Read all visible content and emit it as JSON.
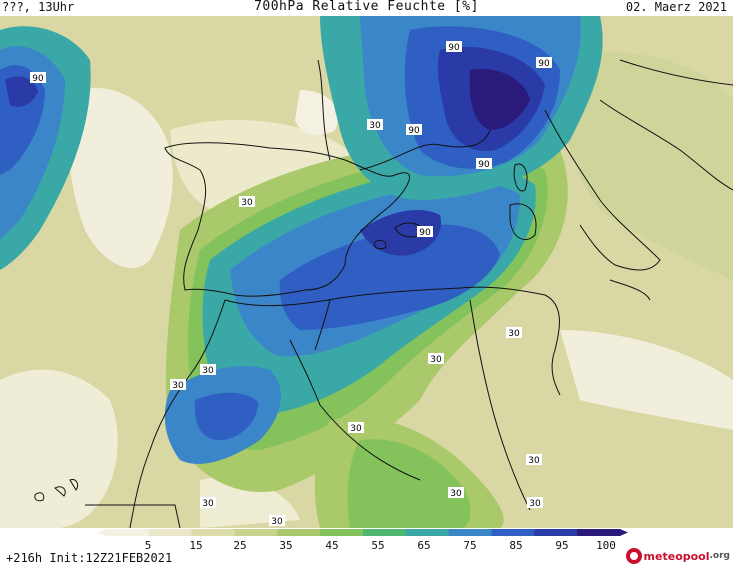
{
  "header": {
    "left_label": "???, 13Uhr",
    "title": "700hPa Relative Feuchte [%]",
    "date": "02. Maerz 2021"
  },
  "colorbar": {
    "tick_labels": [
      "5",
      "15",
      "25",
      "35",
      "45",
      "55",
      "65",
      "75",
      "85",
      "95",
      "100"
    ],
    "colors": [
      "#f4f1e3",
      "#eae7c8",
      "#dcdcaa",
      "#c9d28a",
      "#a9c96b",
      "#84c25c",
      "#4fb873",
      "#3aa8a6",
      "#3b86c9",
      "#2f5fc3",
      "#2a3aa6",
      "#2a1a7c"
    ]
  },
  "footer": {
    "forecast_info": "+216h Init:12Z21FEB2021",
    "logo_text": "meteopool",
    "logo_tld": ".org"
  },
  "contour_labels": [
    "90",
    "90",
    "90",
    "90",
    "90",
    "90",
    "30",
    "30",
    "30",
    "30",
    "30",
    "30",
    "30",
    "30",
    "30",
    "30",
    "30"
  ]
}
